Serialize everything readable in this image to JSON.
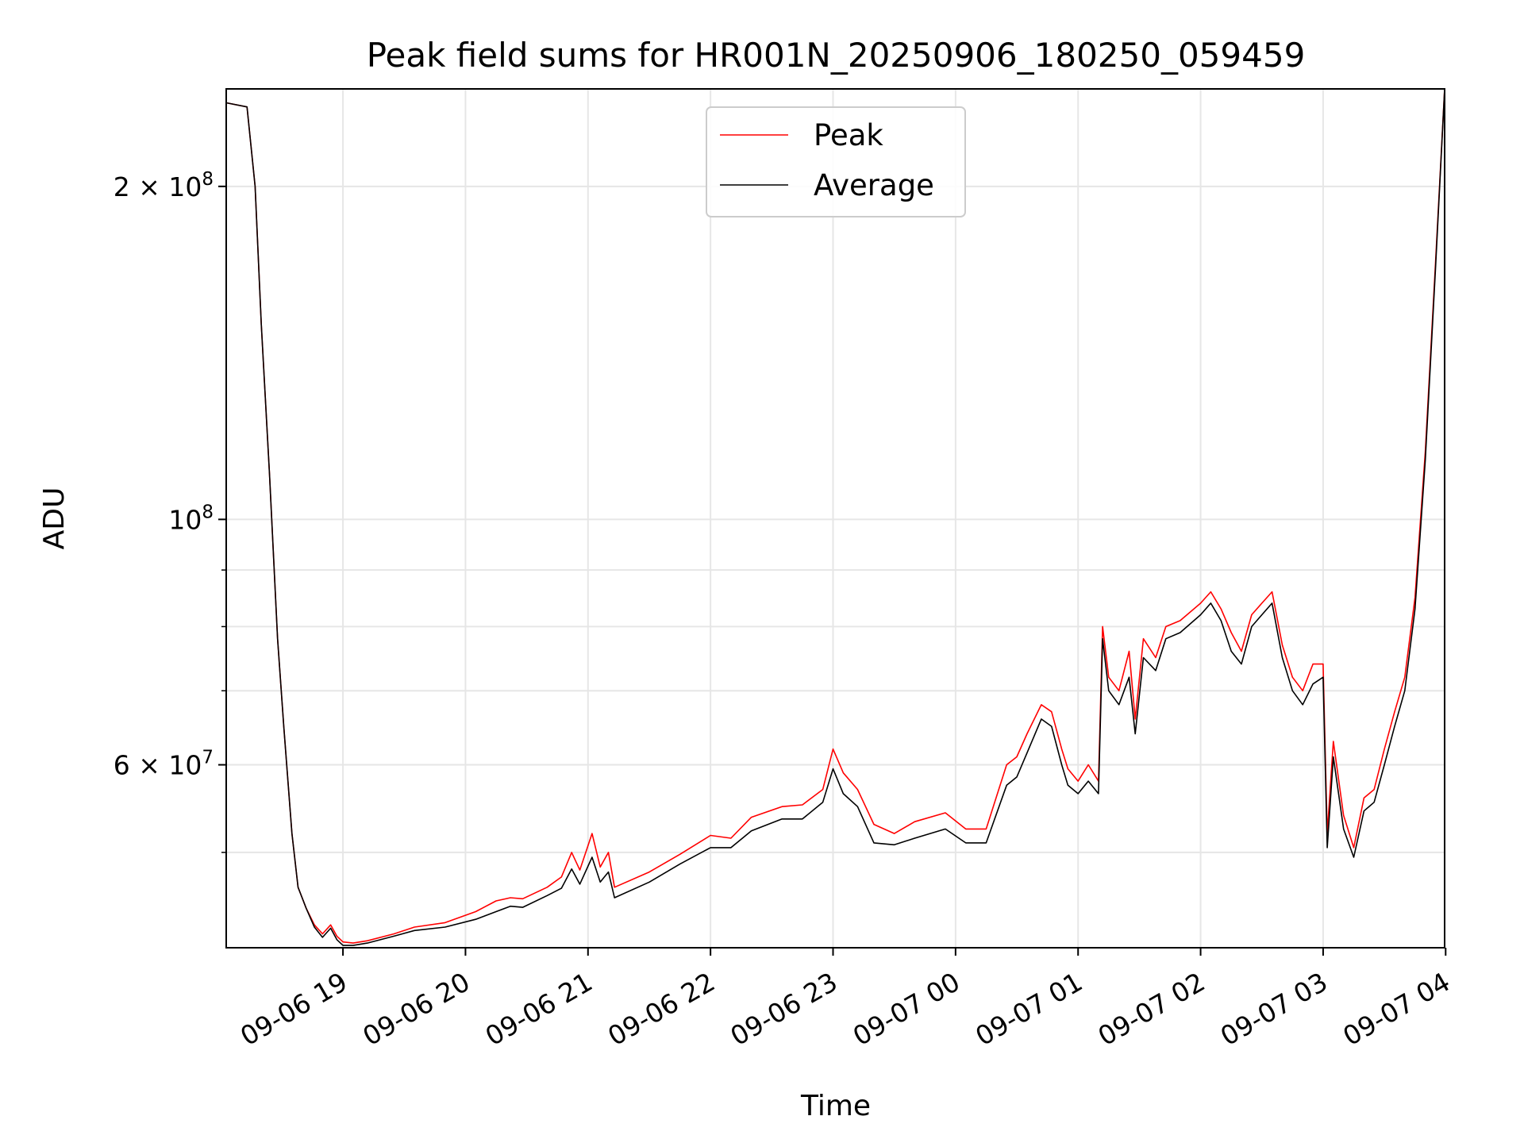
{
  "chart_data": {
    "type": "line",
    "title": "Peak field sums for HR001N_20250906_180250_059459",
    "xlabel": "Time",
    "ylabel": "ADU",
    "y_scale": "log",
    "ylim": [
      41000000,
      245000000
    ],
    "xlim": [
      "2025-09-06 18:02:50",
      "2025-09-07 03:59:30"
    ],
    "grid": true,
    "legend_position": "upper center",
    "x_tick_values": [
      "2025-09-06 19:00",
      "2025-09-06 20:00",
      "2025-09-06 21:00",
      "2025-09-06 22:00",
      "2025-09-06 23:00",
      "2025-09-07 00:00",
      "2025-09-07 01:00",
      "2025-09-07 02:00",
      "2025-09-07 03:00",
      "2025-09-07 04:00"
    ],
    "x_tick_labels": [
      "09-06 19",
      "09-06 20",
      "09-06 21",
      "09-06 22",
      "09-06 23",
      "09-07 00",
      "09-07 01",
      "09-07 02",
      "09-07 03",
      "09-07 04"
    ],
    "y_ticks_major": [
      {
        "value": 200000000,
        "mant": "2",
        "sep": "×",
        "base": "10",
        "exp": "8"
      },
      {
        "value": 100000000,
        "mant": "",
        "sep": "",
        "base": "10",
        "exp": "8"
      },
      {
        "value": 60000000,
        "mant": "6",
        "sep": "×",
        "base": "10",
        "exp": "7"
      }
    ],
    "y_ticks_minor": [
      50000000,
      70000000,
      80000000,
      90000000
    ],
    "x": [
      "2025-09-06 18:02:50",
      "2025-09-06 18:13:00",
      "2025-09-06 18:17:00",
      "2025-09-06 18:20:00",
      "2025-09-06 18:24:00",
      "2025-09-06 18:28:00",
      "2025-09-06 18:31:00",
      "2025-09-06 18:35:00",
      "2025-09-06 18:38:00",
      "2025-09-06 18:42:00",
      "2025-09-06 18:46:00",
      "2025-09-06 18:50:00",
      "2025-09-06 18:54:00",
      "2025-09-06 18:57:00",
      "2025-09-06 19:00:00",
      "2025-09-06 19:05:00",
      "2025-09-06 19:12:00",
      "2025-09-06 19:25:00",
      "2025-09-06 19:35:00",
      "2025-09-06 19:50:00",
      "2025-09-06 20:05:00",
      "2025-09-06 20:15:00",
      "2025-09-06 20:22:00",
      "2025-09-06 20:28:00",
      "2025-09-06 20:40:00",
      "2025-09-06 20:47:00",
      "2025-09-06 20:52:00",
      "2025-09-06 20:56:00",
      "2025-09-06 21:02:00",
      "2025-09-06 21:06:00",
      "2025-09-06 21:10:00",
      "2025-09-06 21:13:00",
      "2025-09-06 21:30:00",
      "2025-09-06 21:45:00",
      "2025-09-06 22:00:00",
      "2025-09-06 22:10:00",
      "2025-09-06 22:20:00",
      "2025-09-06 22:35:00",
      "2025-09-06 22:45:00",
      "2025-09-06 22:55:00",
      "2025-09-06 23:00:00",
      "2025-09-06 23:05:00",
      "2025-09-06 23:12:00",
      "2025-09-06 23:20:00",
      "2025-09-06 23:30:00",
      "2025-09-06 23:40:00",
      "2025-09-06 23:55:00",
      "2025-09-07 00:05:00",
      "2025-09-07 00:15:00",
      "2025-09-07 00:25:00",
      "2025-09-07 00:30:00",
      "2025-09-07 00:35:00",
      "2025-09-07 00:42:00",
      "2025-09-07 00:47:00",
      "2025-09-07 00:52:00",
      "2025-09-07 00:55:00",
      "2025-09-07 01:00:00",
      "2025-09-07 01:05:00",
      "2025-09-07 01:10:00",
      "2025-09-07 01:12:00",
      "2025-09-07 01:15:00",
      "2025-09-07 01:20:00",
      "2025-09-07 01:25:00",
      "2025-09-07 01:28:00",
      "2025-09-07 01:32:00",
      "2025-09-07 01:38:00",
      "2025-09-07 01:43:00",
      "2025-09-07 01:50:00",
      "2025-09-07 02:00:00",
      "2025-09-07 02:05:00",
      "2025-09-07 02:10:00",
      "2025-09-07 02:15:00",
      "2025-09-07 02:20:00",
      "2025-09-07 02:25:00",
      "2025-09-07 02:30:00",
      "2025-09-07 02:35:00",
      "2025-09-07 02:40:00",
      "2025-09-07 02:45:00",
      "2025-09-07 02:50:00",
      "2025-09-07 02:55:00",
      "2025-09-07 03:00:00",
      "2025-09-07 03:02:00",
      "2025-09-07 03:05:00",
      "2025-09-07 03:10:00",
      "2025-09-07 03:15:00",
      "2025-09-07 03:20:00",
      "2025-09-07 03:25:00",
      "2025-09-07 03:30:00",
      "2025-09-07 03:35:00",
      "2025-09-07 03:40:00",
      "2025-09-07 03:45:00",
      "2025-09-07 03:50:00",
      "2025-09-07 03:55:00",
      "2025-09-07 03:59:30"
    ],
    "series": [
      {
        "name": "Peak",
        "color": "#ff0000",
        "values": [
          238000000,
          236000000,
          200000000,
          150000000,
          110000000,
          78000000,
          65000000,
          52000000,
          46500000,
          44500000,
          43000000,
          42200000,
          43000000,
          42000000,
          41500000,
          41400000,
          41600000,
          42200000,
          42800000,
          43200000,
          44200000,
          45200000,
          45500000,
          45400000,
          46500000,
          47500000,
          50000000,
          48200000,
          52000000,
          48500000,
          50000000,
          46500000,
          48000000,
          49800000,
          51800000,
          51500000,
          53800000,
          55000000,
          55200000,
          57000000,
          62000000,
          59000000,
          57000000,
          53000000,
          52000000,
          53300000,
          54300000,
          52500000,
          52500000,
          60000000,
          61000000,
          64000000,
          68000000,
          67000000,
          62000000,
          59500000,
          58000000,
          60000000,
          58000000,
          80000000,
          72000000,
          70000000,
          76000000,
          66000000,
          78000000,
          75000000,
          80000000,
          81000000,
          84000000,
          86000000,
          83000000,
          79000000,
          76000000,
          82000000,
          84000000,
          86000000,
          77000000,
          72000000,
          70000000,
          74000000,
          74000000,
          52000000,
          63000000,
          54000000,
          50500000,
          56000000,
          57000000,
          62000000,
          67000000,
          72000000,
          85000000,
          115000000,
          170000000,
          245000000
        ]
      },
      {
        "name": "Average",
        "color": "#000000",
        "values": [
          238000000,
          236000000,
          200000000,
          150000000,
          110000000,
          78000000,
          65000000,
          52000000,
          46500000,
          44500000,
          42800000,
          41900000,
          42700000,
          41700000,
          41200000,
          41200000,
          41400000,
          42000000,
          42500000,
          42800000,
          43500000,
          44200000,
          44700000,
          44600000,
          45700000,
          46400000,
          48300000,
          46800000,
          49500000,
          47000000,
          48000000,
          45500000,
          47000000,
          48800000,
          50500000,
          50500000,
          52300000,
          53600000,
          53600000,
          55500000,
          59500000,
          56500000,
          55000000,
          51000000,
          50800000,
          51500000,
          52500000,
          51000000,
          51000000,
          57500000,
          58500000,
          61500000,
          66000000,
          65000000,
          60000000,
          57500000,
          56500000,
          58000000,
          56500000,
          78000000,
          70000000,
          68000000,
          72000000,
          64000000,
          75000000,
          73000000,
          78000000,
          79000000,
          82000000,
          84000000,
          81000000,
          76000000,
          74000000,
          80000000,
          82000000,
          84000000,
          75000000,
          70000000,
          68000000,
          71000000,
          72000000,
          50500000,
          61000000,
          52500000,
          49500000,
          54500000,
          55500000,
          60000000,
          65000000,
          70000000,
          83000000,
          113000000,
          168000000,
          245000000
        ]
      }
    ]
  }
}
